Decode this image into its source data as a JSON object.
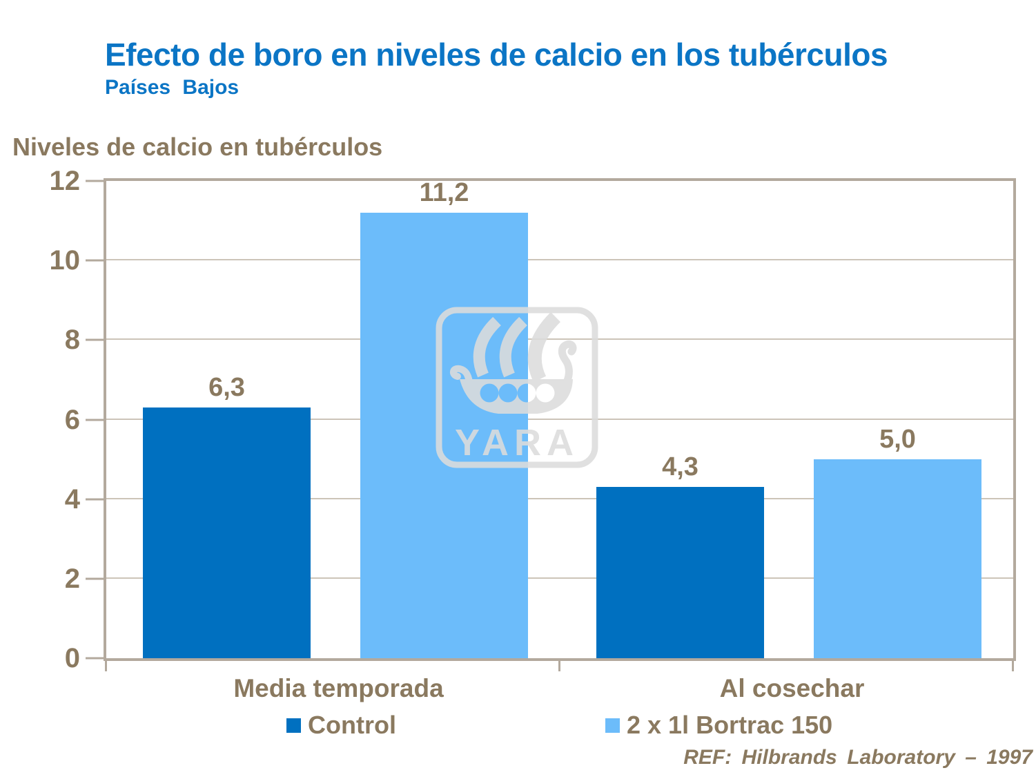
{
  "header": {
    "title": "Efecto de boro en niveles de calcio en los tubérculos",
    "subtitle": "Países Bajos"
  },
  "y_axis_title": "Niveles de calcio en tubérculos",
  "chart_data": {
    "type": "bar",
    "title": "Niveles de calcio en tubérculos",
    "categories": [
      "Media temporada",
      "Al cosechar"
    ],
    "series": [
      {
        "name": "Control",
        "color": "#0070C0",
        "values": [
          6.3,
          4.3
        ],
        "labels": [
          "6,3",
          "4,3"
        ]
      },
      {
        "name": "2 x 1l Bortrac 150",
        "color": "#6CBCFA",
        "values": [
          11.2,
          5.0
        ],
        "labels": [
          "11,2",
          "5,0"
        ]
      }
    ],
    "ylim": [
      0,
      12
    ],
    "yticks": [
      0,
      2,
      4,
      6,
      8,
      10,
      12
    ],
    "grid": true,
    "legend_position": "bottom",
    "decimal_separator": "comma"
  },
  "legend": {
    "items": [
      {
        "label": "Control",
        "color": "#0070C0"
      },
      {
        "label": "2 x 1l Bortrac 150",
        "color": "#6CBCFA"
      }
    ]
  },
  "footer": {
    "reference": "REF: Hilbrands Laboratory – 1997"
  },
  "watermark": {
    "name": "yara-logo",
    "text": "YARA"
  },
  "colors": {
    "title_blue": "#0B75C5",
    "text_brown": "#8A795F",
    "control_blue": "#0070C0",
    "bortrac_blue": "#6CBCFA",
    "plot_border": "#B3A99D",
    "gridline": "#CCC4B8",
    "watermark_gray": "#DCDCDC"
  }
}
